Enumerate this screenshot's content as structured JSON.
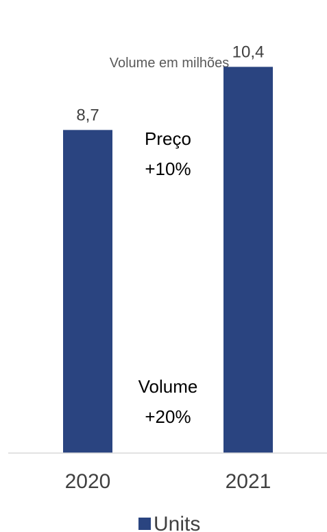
{
  "chart_data": {
    "type": "bar",
    "title": "Volume em milhões",
    "categories": [
      "2020",
      "2021"
    ],
    "series": [
      {
        "name": "Units",
        "values": [
          8.7,
          10.4
        ],
        "value_labels": [
          "8,7",
          "10,4"
        ],
        "color": "#2a4480"
      }
    ],
    "ylim": [
      0,
      12.2
    ],
    "grid": false,
    "legend": "bottom",
    "annotations": [
      {
        "lines": [
          "Preço",
          "+10%"
        ]
      },
      {
        "lines": [
          "Volume",
          "+20%"
        ]
      }
    ],
    "axis_color": "#d9d9d9"
  }
}
